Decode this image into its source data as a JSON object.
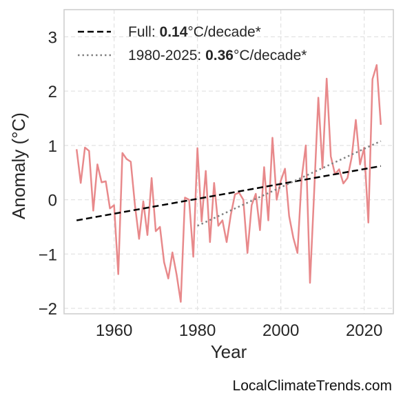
{
  "chart_data": {
    "type": "line",
    "xlabel": "Year",
    "ylabel": "Anomaly (°C)",
    "xlim": [
      1948,
      2027
    ],
    "ylim": [
      -2.1,
      3.5
    ],
    "xticks": [
      1960,
      1980,
      2000,
      2020
    ],
    "yticks": [
      -2,
      -1,
      0,
      1,
      2,
      3
    ],
    "ytick_labels": [
      "−2",
      "−1",
      "0",
      "1",
      "2",
      "3"
    ],
    "grid": true,
    "legend_placement": "top-left",
    "series": [
      {
        "color": "#e8898b",
        "x": [
          1951,
          1952,
          1953,
          1954,
          1955,
          1956,
          1957,
          1958,
          1959,
          1960,
          1961,
          1962,
          1963,
          1964,
          1965,
          1966,
          1967,
          1968,
          1969,
          1970,
          1971,
          1972,
          1973,
          1974,
          1975,
          1976,
          1977,
          1978,
          1979,
          1980,
          1981,
          1982,
          1983,
          1984,
          1985,
          1986,
          1987,
          1988,
          1989,
          1990,
          1991,
          1992,
          1993,
          1994,
          1995,
          1996,
          1997,
          1998,
          1999,
          2000,
          2001,
          2002,
          2003,
          2004,
          2005,
          2006,
          2007,
          2008,
          2009,
          2010,
          2011,
          2012,
          2013,
          2014,
          2015,
          2016,
          2017,
          2018,
          2019,
          2020,
          2021,
          2022,
          2023,
          2024
        ],
        "y": [
          0.93,
          0.31,
          0.96,
          0.9,
          -0.2,
          0.65,
          0.32,
          0.34,
          -0.16,
          -0.1,
          -1.37,
          0.86,
          0.75,
          0.7,
          -0.1,
          -0.72,
          -0.03,
          -0.65,
          0.4,
          -0.58,
          -0.5,
          -1.15,
          -1.45,
          -0.97,
          -1.38,
          -1.88,
          0.04,
          0.0,
          -1.05,
          0.95,
          -0.4,
          0.53,
          -0.78,
          0.31,
          -0.48,
          -0.38,
          -0.78,
          -0.28,
          0.1,
          0.13,
          0.0,
          -0.98,
          -0.1,
          0.11,
          -0.56,
          0.6,
          -0.38,
          1.14,
          0.0,
          0.35,
          0.57,
          -0.3,
          -0.7,
          -0.98,
          0.4,
          1.0,
          -1.53,
          0.13,
          1.88,
          0.58,
          2.23,
          0.8,
          0.47,
          0.56,
          0.3,
          0.4,
          0.78,
          1.47,
          0.65,
          0.96,
          -0.42,
          2.22,
          2.48,
          1.38
        ]
      }
    ],
    "trend_lines": [
      {
        "label_prefix": "Full: ",
        "label_value": "0.14",
        "label_suffix": "°C/decade*",
        "style": "dashed",
        "color": "#000000",
        "x": [
          1951,
          2024
        ],
        "y": [
          -0.38,
          0.62
        ]
      },
      {
        "label_prefix": "1980-2025: ",
        "label_value": "0.36",
        "label_suffix": "°C/decade*",
        "style": "dotted",
        "color": "#808080",
        "x": [
          1980,
          2024
        ],
        "y": [
          -0.48,
          1.08
        ]
      }
    ]
  },
  "watermark": "LocalClimateTrends.com"
}
